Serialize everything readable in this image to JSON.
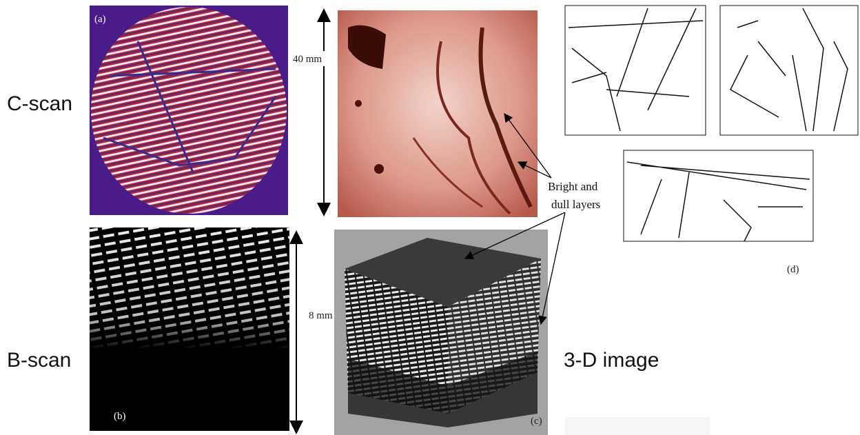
{
  "row_labels": {
    "top": "C-scan",
    "bottom": "B-scan",
    "right": "3-D image"
  },
  "panels": {
    "a": "(a)",
    "b": "(b)",
    "c": "(c)",
    "d": "(d)"
  },
  "scales": {
    "c_scan": "40 mm",
    "b_scan": "8 mm"
  },
  "annotation": {
    "line1": "Bright and",
    "line2": "dull layers"
  }
}
